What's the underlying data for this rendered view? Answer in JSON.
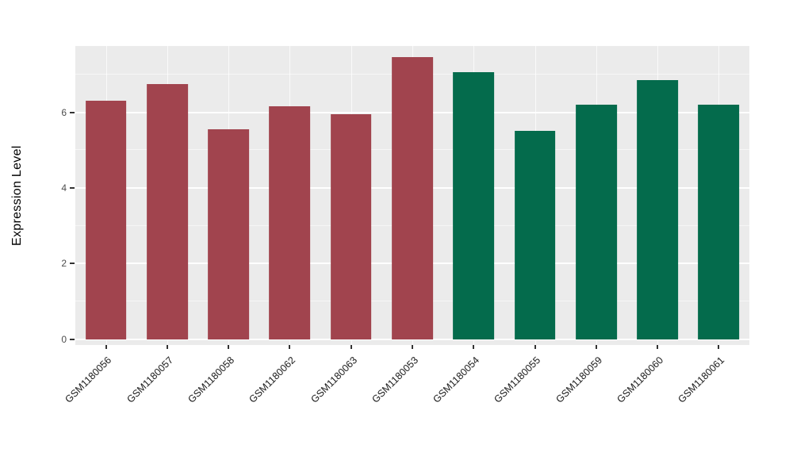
{
  "chart_data": {
    "type": "bar",
    "title": "",
    "xlabel": "",
    "ylabel": "Expression Level",
    "categories": [
      "GSM1180056",
      "GSM1180057",
      "GSM1180058",
      "GSM1180062",
      "GSM1180063",
      "GSM1180053",
      "GSM1180054",
      "GSM1180055",
      "GSM1180059",
      "GSM1180060",
      "GSM1180061"
    ],
    "values": [
      6.3,
      6.75,
      5.55,
      6.15,
      5.95,
      7.45,
      7.05,
      5.5,
      6.2,
      6.85,
      6.2
    ],
    "bar_colors": [
      "#A1444E",
      "#A1444E",
      "#A1444E",
      "#A1444E",
      "#A1444E",
      "#A1444E",
      "#046B4C",
      "#046B4C",
      "#046B4C",
      "#046B4C",
      "#046B4C"
    ],
    "group_colors": {
      "left_group": "#A1444E",
      "right_group": "#046B4C"
    },
    "ylim": [
      -0.15,
      7.75
    ],
    "yticks_major": [
      0,
      2,
      4,
      6
    ],
    "yticks_minor": [
      1,
      3,
      5,
      7
    ],
    "bar_width_fraction": 0.67,
    "panel_background": "#EBEBEB",
    "gridline_color": "#FFFFFF",
    "tick_label_color": "#4D4D4D",
    "grid": "on",
    "legend": "none"
  }
}
